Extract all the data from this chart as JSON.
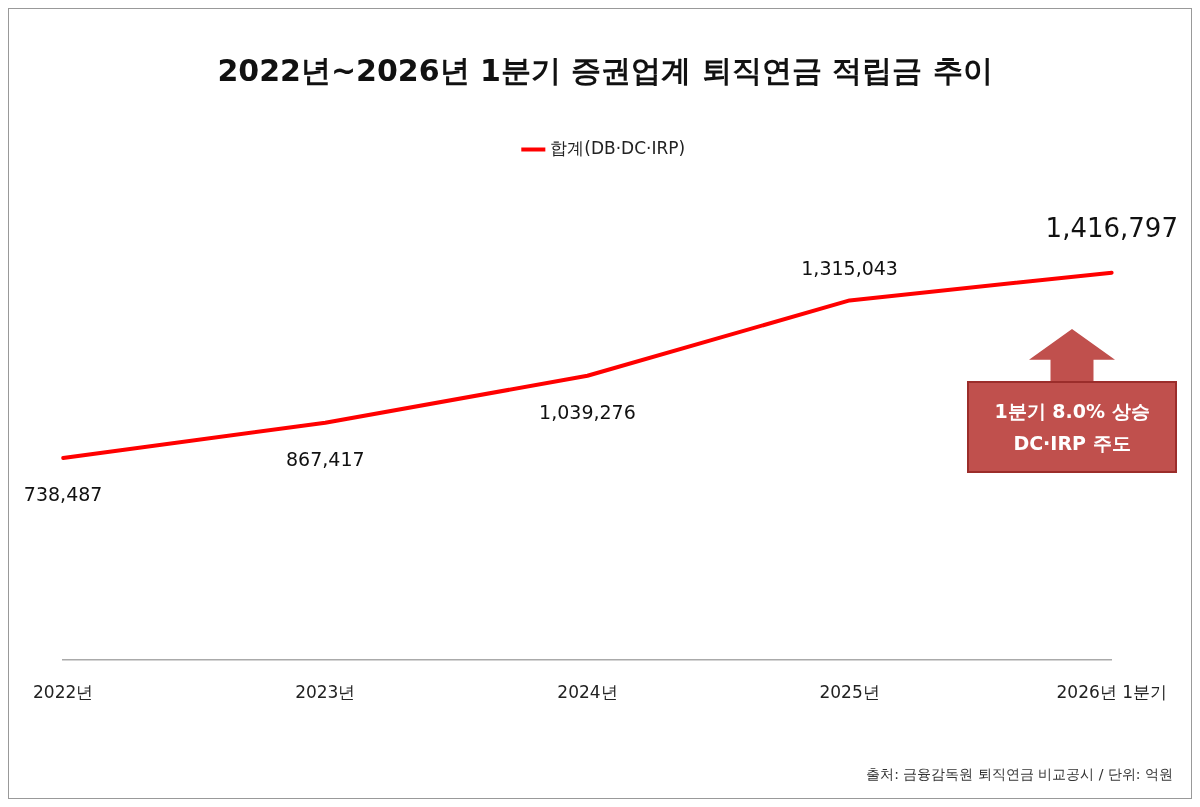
{
  "chart_data": {
    "type": "line",
    "title": "2022년~2026년 1분기 증권업계 퇴직연금 적립금 추이",
    "categories": [
      "2022년",
      "2023년",
      "2024년",
      "2025년",
      "2026년 1분기"
    ],
    "series": [
      {
        "name": "합계(DB·DC·IRP)",
        "color": "#ff0000",
        "values": [
          738487,
          867417,
          1039276,
          1315043,
          1416797
        ],
        "value_labels": [
          "738,487",
          "867,417",
          "1,039,276",
          "1,315,043",
          "1,416,797"
        ]
      }
    ],
    "legend": "top",
    "grid": false,
    "marker": "none",
    "line_style": "solid",
    "annotations": [
      "1분기 8.0% 상승 DC·IRP 주도",
      "출처: 금융감독원 퇴직연금 비교공시 / 단위: 억원"
    ]
  }
}
